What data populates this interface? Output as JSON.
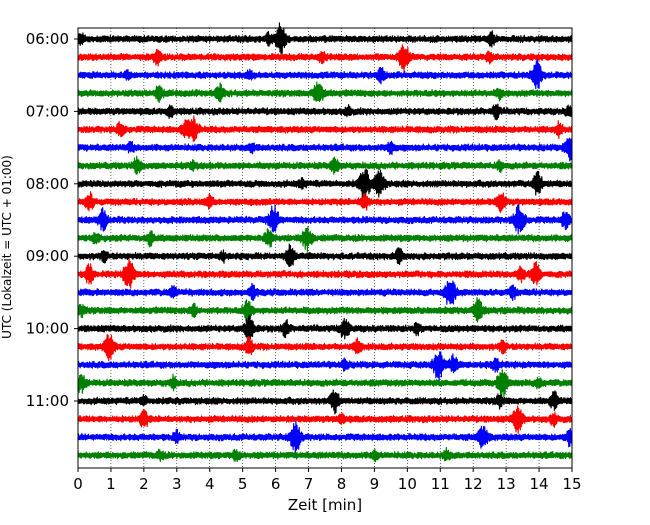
{
  "chart_data": {
    "type": "line",
    "title": "",
    "xlabel": "Zeit  [min]",
    "ylabel": "UTC (Lokalzeit = UTC + 01:00)",
    "xlim": [
      0,
      15
    ],
    "x_ticks": [
      "0",
      "1",
      "2",
      "3",
      "4",
      "5",
      "6",
      "7",
      "8",
      "9",
      "10",
      "11",
      "12",
      "13",
      "14",
      "15"
    ],
    "y_ticks": [
      {
        "label": "06:00",
        "row": 0
      },
      {
        "label": "07:00",
        "row": 4
      },
      {
        "label": "08:00",
        "row": 8
      },
      {
        "label": "09:00",
        "row": 12
      },
      {
        "label": "10:00",
        "row": 16
      },
      {
        "label": "11:00",
        "row": 20
      }
    ],
    "grid_x": true,
    "colors": [
      "#000000",
      "#ff0000",
      "#0000ff",
      "#008000"
    ],
    "rows": [
      {
        "color": "#000000",
        "events": [
          [
            6.15,
            1.0
          ],
          [
            12.55,
            0.5
          ],
          [
            5.8,
            0.35
          ],
          [
            0.1,
            0.3
          ]
        ]
      },
      {
        "color": "#ff0000",
        "events": [
          [
            9.9,
            0.9
          ],
          [
            2.4,
            0.45
          ],
          [
            7.4,
            0.35
          ],
          [
            12.5,
            0.3
          ]
        ]
      },
      {
        "color": "#0000ff",
        "events": [
          [
            13.95,
            0.9
          ],
          [
            9.2,
            0.45
          ],
          [
            5.2,
            0.3
          ],
          [
            1.5,
            0.25
          ]
        ]
      },
      {
        "color": "#008000",
        "events": [
          [
            7.3,
            0.85
          ],
          [
            4.3,
            0.6
          ],
          [
            2.45,
            0.5
          ],
          [
            12.8,
            0.3
          ]
        ]
      },
      {
        "color": "#000000",
        "events": [
          [
            12.7,
            0.45
          ],
          [
            2.8,
            0.35
          ],
          [
            8.2,
            0.3
          ],
          [
            14.9,
            0.3
          ]
        ]
      },
      {
        "color": "#ff0000",
        "events": [
          [
            3.5,
            0.85
          ],
          [
            3.25,
            0.5
          ],
          [
            1.3,
            0.5
          ],
          [
            14.6,
            0.4
          ]
        ]
      },
      {
        "color": "#0000ff",
        "events": [
          [
            14.95,
            0.9
          ],
          [
            9.5,
            0.4
          ],
          [
            5.3,
            0.3
          ],
          [
            1.6,
            0.3
          ]
        ]
      },
      {
        "color": "#008000",
        "events": [
          [
            1.8,
            0.55
          ],
          [
            7.8,
            0.5
          ],
          [
            3.5,
            0.35
          ],
          [
            12.8,
            0.3
          ]
        ]
      },
      {
        "color": "#000000",
        "events": [
          [
            8.7,
            1.0
          ],
          [
            9.15,
            0.9
          ],
          [
            13.95,
            0.8
          ],
          [
            6.8,
            0.3
          ]
        ]
      },
      {
        "color": "#ff0000",
        "events": [
          [
            12.85,
            0.65
          ],
          [
            8.7,
            0.55
          ],
          [
            0.35,
            0.6
          ],
          [
            4.0,
            0.4
          ]
        ]
      },
      {
        "color": "#0000ff",
        "events": [
          [
            5.95,
            0.9
          ],
          [
            13.4,
            1.0
          ],
          [
            0.75,
            0.65
          ],
          [
            14.8,
            0.55
          ]
        ]
      },
      {
        "color": "#008000",
        "events": [
          [
            6.95,
            0.8
          ],
          [
            5.8,
            0.65
          ],
          [
            2.2,
            0.45
          ],
          [
            0.55,
            0.35
          ]
        ]
      },
      {
        "color": "#000000",
        "events": [
          [
            6.45,
            0.75
          ],
          [
            9.75,
            0.5
          ],
          [
            4.4,
            0.3
          ],
          [
            0.8,
            0.3
          ]
        ]
      },
      {
        "color": "#ff0000",
        "events": [
          [
            1.55,
            1.0
          ],
          [
            13.9,
            0.75
          ],
          [
            0.35,
            0.6
          ],
          [
            13.45,
            0.5
          ]
        ]
      },
      {
        "color": "#0000ff",
        "events": [
          [
            11.3,
            1.0
          ],
          [
            5.3,
            0.5
          ],
          [
            2.9,
            0.45
          ],
          [
            13.2,
            0.4
          ]
        ]
      },
      {
        "color": "#008000",
        "events": [
          [
            12.15,
            0.75
          ],
          [
            5.15,
            0.65
          ],
          [
            3.5,
            0.4
          ],
          [
            0.1,
            0.35
          ]
        ]
      },
      {
        "color": "#000000",
        "events": [
          [
            5.2,
            0.85
          ],
          [
            8.1,
            0.7
          ],
          [
            6.3,
            0.5
          ],
          [
            10.3,
            0.35
          ]
        ]
      },
      {
        "color": "#ff0000",
        "events": [
          [
            0.95,
            0.85
          ],
          [
            5.2,
            0.55
          ],
          [
            8.5,
            0.45
          ],
          [
            12.9,
            0.35
          ]
        ]
      },
      {
        "color": "#0000ff",
        "events": [
          [
            10.95,
            1.0
          ],
          [
            11.4,
            0.6
          ],
          [
            12.7,
            0.5
          ],
          [
            8.1,
            0.35
          ]
        ]
      },
      {
        "color": "#008000",
        "events": [
          [
            12.9,
            0.95
          ],
          [
            0.1,
            0.6
          ],
          [
            2.9,
            0.4
          ],
          [
            14.0,
            0.35
          ]
        ]
      },
      {
        "color": "#000000",
        "events": [
          [
            7.8,
            0.75
          ],
          [
            14.45,
            0.55
          ],
          [
            12.8,
            0.4
          ],
          [
            2.0,
            0.3
          ]
        ]
      },
      {
        "color": "#ff0000",
        "events": [
          [
            13.35,
            0.85
          ],
          [
            2.0,
            0.6
          ],
          [
            14.45,
            0.4
          ],
          [
            8.0,
            0.3
          ]
        ]
      },
      {
        "color": "#0000ff",
        "events": [
          [
            6.6,
            1.0
          ],
          [
            12.3,
            0.8
          ],
          [
            14.95,
            0.6
          ],
          [
            3.0,
            0.35
          ]
        ]
      },
      {
        "color": "#008000",
        "events": [
          [
            4.8,
            0.4
          ],
          [
            11.2,
            0.35
          ],
          [
            2.5,
            0.3
          ],
          [
            9.0,
            0.3
          ]
        ]
      }
    ]
  }
}
